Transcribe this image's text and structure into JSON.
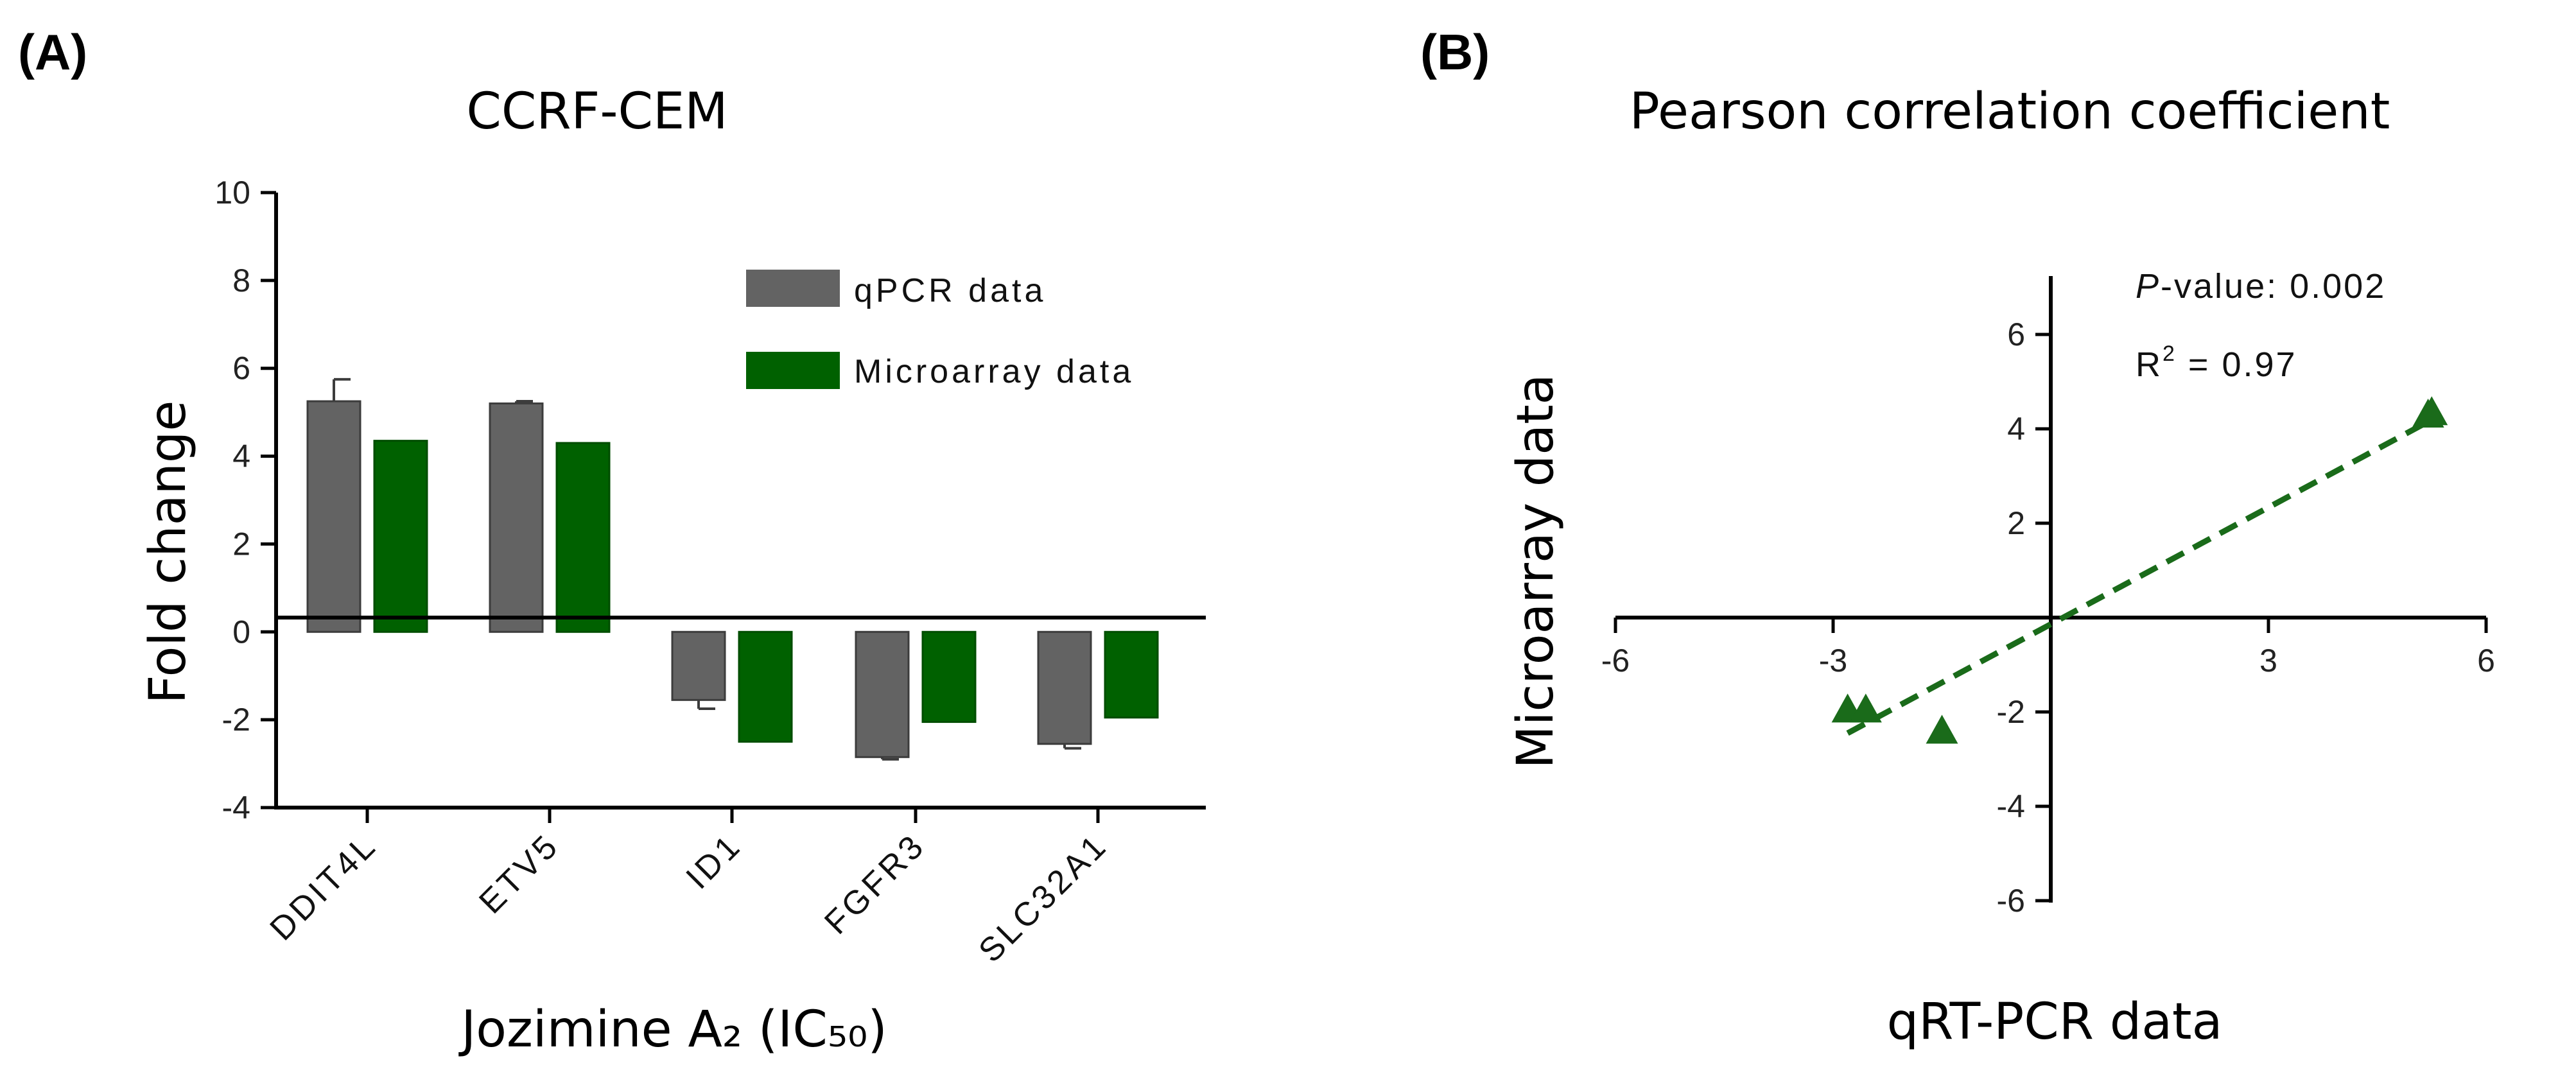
{
  "panels": {
    "a_label": "(A)",
    "b_label": "(B)"
  },
  "chart_data": [
    {
      "type": "bar",
      "title": "CCRF-CEM",
      "xlabel": "Jozimine A₂ (IC₅₀)",
      "ylabel": "Fold change",
      "ylim": [
        -4,
        10
      ],
      "yticks": [
        -4,
        -2,
        0,
        2,
        4,
        6,
        8,
        10
      ],
      "categories": [
        "DDIT4L",
        "ETV5",
        "ID1",
        "FGFR3",
        "SLC32A1"
      ],
      "series": [
        {
          "name": "qPCR data",
          "color": "#636363",
          "values": [
            5.25,
            5.2,
            -1.55,
            -2.85,
            -2.55
          ],
          "errors": [
            0.5,
            0.05,
            0.2,
            0.05,
            0.1
          ]
        },
        {
          "name": "Microarray data",
          "color": "#006100",
          "values": [
            4.35,
            4.3,
            -2.5,
            -2.05,
            -1.95
          ]
        }
      ],
      "legend_position": "top-right"
    },
    {
      "type": "scatter",
      "title": "Pearson correlation coefficient",
      "xlabel": "qRT-PCR data",
      "ylabel": "Microarray data",
      "xlim": [
        -6,
        6
      ],
      "ylim": [
        -6,
        6
      ],
      "xticks": [
        -6,
        -3,
        3,
        6
      ],
      "yticks": [
        -6,
        -4,
        -2,
        2,
        4,
        6
      ],
      "points": [
        {
          "x": -2.8,
          "y": -1.95
        },
        {
          "x": -2.55,
          "y": -1.95
        },
        {
          "x": -1.5,
          "y": -2.4
        },
        {
          "x": 5.2,
          "y": 4.3
        },
        {
          "x": 5.25,
          "y": 4.35
        }
      ],
      "point_color": "#1a6b1a",
      "fit_line": {
        "x": [
          -2.8,
          5.2
        ],
        "y": [
          -2.45,
          4.15
        ],
        "color": "#1a6b1a",
        "style": "dashed"
      },
      "annotations": {
        "p_label": "P",
        "p_rest": "-value: 0.002",
        "r2_base": "R",
        "r2_exp": "2",
        "r2_rest": " = 0.97"
      }
    }
  ]
}
